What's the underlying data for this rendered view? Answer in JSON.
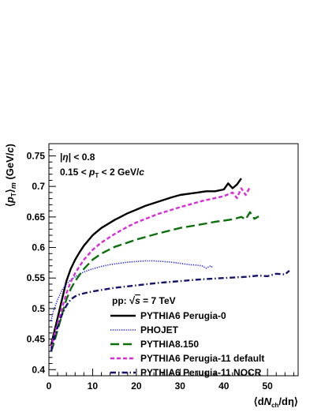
{
  "chart_data": {
    "type": "line",
    "xlabel": "⟨dN_ch/dη⟩",
    "ylabel": "⟨p_T⟩_m (GeV/c)",
    "xlim": [
      0,
      57
    ],
    "ylim": [
      0.39,
      0.77
    ],
    "x_ticks": [
      0,
      10,
      20,
      30,
      40,
      50
    ],
    "y_ticks": [
      0.4,
      0.45,
      0.5,
      0.55,
      0.6,
      0.65,
      0.7,
      0.75
    ],
    "annotations": [
      "|η| < 0.8",
      "0.15 < p_T < 2 GeV/c"
    ],
    "legend_header": "pp:  √s = 7 TeV",
    "legend_position": "bottom-right",
    "grid": false,
    "series": [
      {
        "name": "PYTHIA6 Perugia-0",
        "color": "#000000",
        "style": "solid",
        "x": [
          0.5,
          1,
          2,
          3,
          4,
          5,
          6,
          7,
          8,
          10,
          12,
          15,
          18,
          20,
          22,
          25,
          28,
          30,
          32,
          34,
          36,
          38,
          40,
          41,
          42,
          43,
          44
        ],
        "y": [
          0.44,
          0.455,
          0.485,
          0.515,
          0.545,
          0.565,
          0.58,
          0.592,
          0.603,
          0.62,
          0.632,
          0.645,
          0.656,
          0.662,
          0.668,
          0.675,
          0.682,
          0.686,
          0.688,
          0.69,
          0.692,
          0.692,
          0.695,
          0.705,
          0.697,
          0.703,
          0.713
        ]
      },
      {
        "name": "PHOJET",
        "color": "#1a1aff",
        "style": "dotted",
        "x": [
          0.5,
          1,
          2,
          3,
          4,
          5,
          6,
          8,
          10,
          12,
          14,
          16,
          18,
          20,
          22,
          24,
          26,
          28,
          30,
          32,
          34,
          35,
          36,
          37,
          37.5
        ],
        "y": [
          0.48,
          0.495,
          0.515,
          0.53,
          0.54,
          0.547,
          0.552,
          0.56,
          0.565,
          0.569,
          0.572,
          0.574,
          0.576,
          0.577,
          0.578,
          0.578,
          0.577,
          0.576,
          0.574,
          0.572,
          0.571,
          0.57,
          0.566,
          0.57,
          0.567
        ]
      },
      {
        "name": "PYTHIA8.150",
        "color": "#0b700b",
        "style": "long-dash",
        "x": [
          0.5,
          1,
          2,
          3,
          4,
          5,
          6,
          8,
          10,
          12,
          15,
          18,
          20,
          25,
          30,
          35,
          38,
          40,
          42,
          44,
          45,
          46,
          47,
          48
        ],
        "y": [
          0.43,
          0.44,
          0.465,
          0.49,
          0.515,
          0.532,
          0.545,
          0.565,
          0.58,
          0.59,
          0.601,
          0.608,
          0.613,
          0.623,
          0.632,
          0.638,
          0.642,
          0.644,
          0.646,
          0.65,
          0.646,
          0.658,
          0.647,
          0.651
        ]
      },
      {
        "name": "PYTHIA6 Perugia-11 default",
        "color": "#d92bd9",
        "style": "short-dash",
        "x": [
          0.5,
          1,
          2,
          3,
          4,
          5,
          6,
          8,
          10,
          12,
          15,
          18,
          20,
          25,
          30,
          35,
          38,
          40,
          42,
          43,
          44,
          45,
          46
        ],
        "y": [
          0.435,
          0.45,
          0.475,
          0.5,
          0.525,
          0.544,
          0.558,
          0.58,
          0.596,
          0.608,
          0.622,
          0.634,
          0.641,
          0.655,
          0.666,
          0.676,
          0.681,
          0.684,
          0.69,
          0.681,
          0.697,
          0.686,
          0.699
        ]
      },
      {
        "name": "PYTHIA6 Perugia-11 NOCR",
        "color": "#14146e",
        "style": "dash-dot",
        "x": [
          0.5,
          1,
          2,
          3,
          4,
          5,
          6,
          7,
          8,
          10,
          15,
          20,
          25,
          30,
          35,
          40,
          45,
          48,
          50,
          52,
          54,
          55
        ],
        "y": [
          0.43,
          0.445,
          0.47,
          0.49,
          0.505,
          0.515,
          0.52,
          0.523,
          0.525,
          0.528,
          0.534,
          0.538,
          0.542,
          0.545,
          0.548,
          0.55,
          0.552,
          0.554,
          0.553,
          0.557,
          0.556,
          0.562
        ]
      }
    ]
  }
}
